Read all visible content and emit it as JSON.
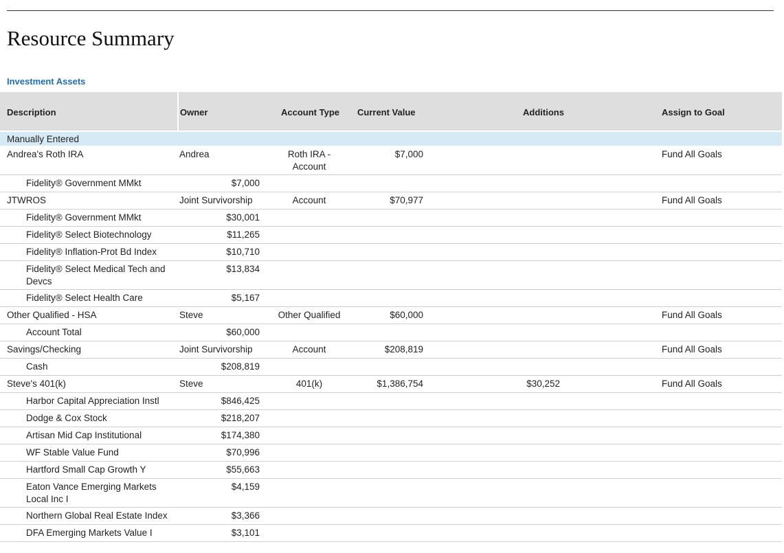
{
  "page": {
    "title": "Resource Summary"
  },
  "section": {
    "title": "Investment Assets"
  },
  "columns": {
    "description": "Description",
    "owner": "Owner",
    "account_type": "Account Type",
    "current_value": "Current Value",
    "additions": "Additions",
    "assign_to_goal": "Assign to Goal"
  },
  "group": {
    "label": "Manually Entered"
  },
  "rows": [
    {
      "kind": "account",
      "description": "Andrea's Roth IRA",
      "owner": "Andrea",
      "account_type": "Roth IRA - Account",
      "current_value": "$7,000",
      "additions": "",
      "goal": "Fund All Goals"
    },
    {
      "kind": "holding",
      "description": "Fidelity® Government MMkt",
      "value": "$7,000"
    },
    {
      "kind": "account",
      "description": "JTWROS",
      "owner": "Joint Survivorship",
      "account_type": "Account",
      "current_value": "$70,977",
      "additions": "",
      "goal": "Fund All Goals"
    },
    {
      "kind": "holding",
      "description": "Fidelity® Government MMkt",
      "value": "$30,001"
    },
    {
      "kind": "holding",
      "description": "Fidelity® Select Biotechnology",
      "value": "$11,265"
    },
    {
      "kind": "holding",
      "description": "Fidelity® Inflation-Prot Bd Index",
      "value": "$10,710"
    },
    {
      "kind": "holding",
      "description": "Fidelity® Select Medical Tech and Devcs",
      "value": "$13,834"
    },
    {
      "kind": "holding",
      "description": "Fidelity® Select Health Care",
      "value": "$5,167"
    },
    {
      "kind": "account",
      "description": "Other Qualified - HSA",
      "owner": "Steve",
      "account_type": "Other Qualified",
      "current_value": "$60,000",
      "additions": "",
      "goal": "Fund All Goals"
    },
    {
      "kind": "holding",
      "description": "Account Total",
      "value": "$60,000"
    },
    {
      "kind": "account",
      "description": "Savings/Checking",
      "owner": "Joint Survivorship",
      "account_type": "Account",
      "current_value": "$208,819",
      "additions": "",
      "goal": "Fund All Goals"
    },
    {
      "kind": "holding",
      "description": "Cash",
      "value": "$208,819"
    },
    {
      "kind": "account",
      "description": "Steve's 401(k)",
      "owner": "Steve",
      "account_type": "401(k)",
      "current_value": "$1,386,754",
      "additions": "$30,252",
      "goal": "Fund All Goals"
    },
    {
      "kind": "holding",
      "description": "Harbor Capital Appreciation Instl",
      "value": "$846,425"
    },
    {
      "kind": "holding",
      "description": "Dodge & Cox Stock",
      "value": "$218,207"
    },
    {
      "kind": "holding",
      "description": "Artisan Mid Cap Institutional",
      "value": "$174,380"
    },
    {
      "kind": "holding",
      "description": "WF Stable Value Fund",
      "value": "$70,996"
    },
    {
      "kind": "holding",
      "description": "Hartford Small Cap Growth Y",
      "value": "$55,663"
    },
    {
      "kind": "holding",
      "description": "Eaton Vance Emerging Markets Local Inc I",
      "value": "$4,159"
    },
    {
      "kind": "holding",
      "description": "Northern Global Real Estate Index",
      "value": "$3,366"
    },
    {
      "kind": "holding",
      "description": "DFA Emerging Markets Value I",
      "value": "$3,101"
    }
  ]
}
